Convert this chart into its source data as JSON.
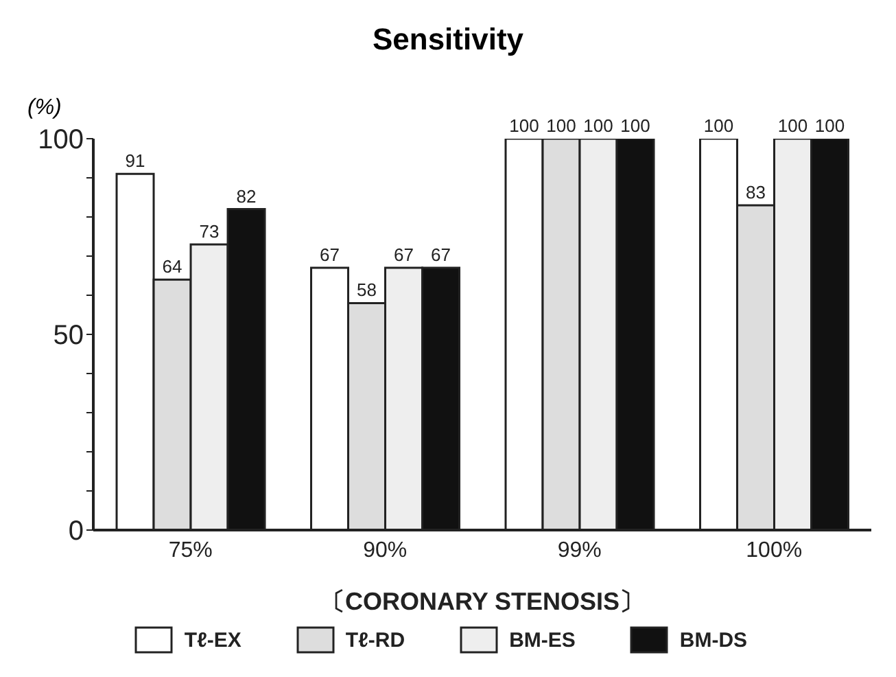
{
  "chart_data": {
    "type": "bar",
    "title": "Sensitivity",
    "ylabel": "(%)",
    "xlabel": "〔CORONARY STENOSIS〕",
    "categories": [
      "75%",
      "90%",
      "99%",
      "100%"
    ],
    "series": [
      {
        "name": "Tℓ-EX",
        "color": "#ffffff",
        "values": [
          91,
          67,
          100,
          100
        ]
      },
      {
        "name": "Tℓ-RD",
        "color": "#dddddd",
        "values": [
          64,
          58,
          100,
          83
        ]
      },
      {
        "name": "BM-ES",
        "color": "#eeeeee",
        "values": [
          73,
          67,
          100,
          100
        ]
      },
      {
        "name": "BM-DS",
        "color": "#111111",
        "values": [
          82,
          67,
          100,
          100
        ]
      }
    ],
    "ylim": [
      0,
      100
    ],
    "yticks": [
      0,
      {
        "value": 10,
        "label": null
      },
      {
        "value": 20,
        "label": null
      },
      {
        "value": 30,
        "label": null
      },
      {
        "value": 40,
        "label": null
      },
      50,
      {
        "value": 60,
        "label": null
      },
      {
        "value": 70,
        "label": null
      },
      {
        "value": 80,
        "label": null
      },
      {
        "value": 90,
        "label": null
      },
      100
    ],
    "data_labels": true,
    "grid": false,
    "legend": "bottom"
  }
}
